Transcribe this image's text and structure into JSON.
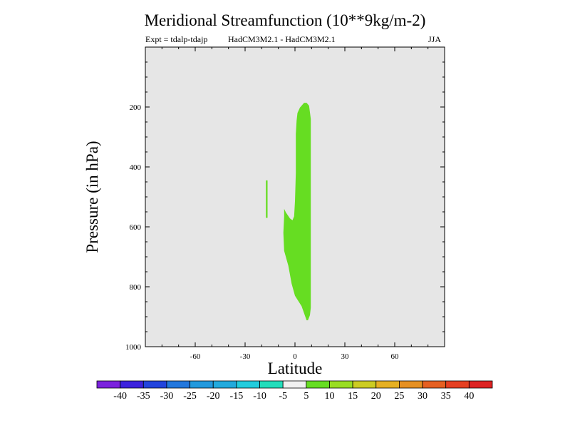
{
  "chart_data": {
    "type": "contour",
    "title": "Meridional Streamfunction (10**9kg/m-2)",
    "subtitle_left": "Expt = tdalp-tdajp",
    "subtitle_center": "HadCM3M2.1 - HadCM3M2.1",
    "subtitle_right": "JJA",
    "xlabel": "Latitude",
    "ylabel": "Pressure (in hPa)",
    "xlim": [
      -90,
      90
    ],
    "ylim": [
      1000,
      0
    ],
    "xticks": [
      -60,
      -30,
      0,
      30,
      60
    ],
    "yticks": [
      200,
      400,
      600,
      800,
      1000
    ],
    "background_color": "#e6e6e6",
    "shaded_regions": [
      {
        "level": "5 to 10",
        "color": "#66dd22",
        "polygon": [
          [
            0.5,
            290
          ],
          [
            1,
            245
          ],
          [
            1.5,
            220
          ],
          [
            3,
            202
          ],
          [
            5.5,
            186
          ],
          [
            7,
            186
          ],
          [
            8.5,
            196
          ],
          [
            9.5,
            240
          ],
          [
            9.5,
            400
          ],
          [
            9.5,
            600
          ],
          [
            9.5,
            800
          ],
          [
            9.5,
            870
          ],
          [
            9,
            895
          ],
          [
            7.8,
            912
          ],
          [
            7,
            912
          ],
          [
            6.2,
            900
          ],
          [
            4,
            865
          ],
          [
            0,
            830
          ],
          [
            -2,
            790
          ],
          [
            -4,
            730
          ],
          [
            -6.5,
            680
          ],
          [
            -7,
            620
          ],
          [
            -6.5,
            565
          ],
          [
            -6.5,
            540
          ],
          [
            -5.5,
            552
          ],
          [
            -3,
            572
          ],
          [
            -1.5,
            578
          ],
          [
            -0.5,
            565
          ],
          [
            0,
            515
          ],
          [
            0.5,
            420
          ]
        ]
      },
      {
        "level": "5 to 10",
        "color": "#66dd22",
        "polygon": [
          [
            -17.5,
            445
          ],
          [
            -16.5,
            445
          ],
          [
            -16.5,
            570
          ],
          [
            -17.5,
            570
          ]
        ]
      }
    ],
    "colorbar": {
      "labels": [
        "-40",
        "-35",
        "-30",
        "-25",
        "-20",
        "-15",
        "-10",
        "-5",
        "5",
        "10",
        "15",
        "20",
        "25",
        "30",
        "35",
        "40"
      ],
      "colors": [
        "#7b22dd",
        "#3c22dd",
        "#2244dd",
        "#2277dd",
        "#2299dd",
        "#22aadd",
        "#22ccdd",
        "#22ddbb",
        "#f0f0f0",
        "#66dd22",
        "#99dd22",
        "#cccc22",
        "#e6b022",
        "#e69022",
        "#e66022",
        "#e64022",
        "#dd2222"
      ]
    }
  }
}
